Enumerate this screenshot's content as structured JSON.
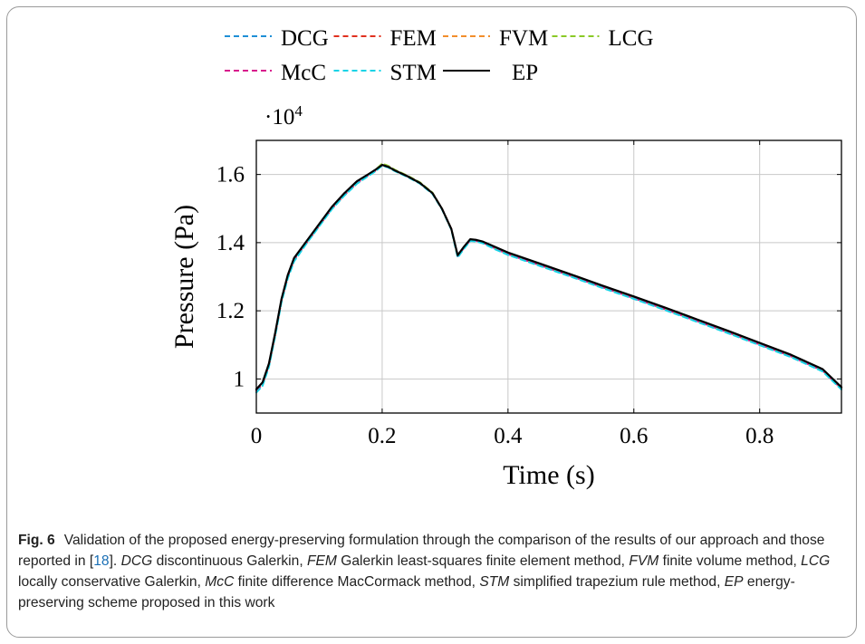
{
  "chart_data": {
    "type": "line",
    "xlabel": "Time (s)",
    "ylabel": "Pressure (Pa)",
    "y_multiplier": "·10",
    "y_multiplier_exponent": "4",
    "xlim": [
      0,
      0.93
    ],
    "ylim": [
      0.9,
      1.7
    ],
    "xticks": [
      0,
      0.2,
      0.4,
      0.6,
      0.8
    ],
    "xtick_labels": [
      "0",
      "0.2",
      "0.4",
      "0.6",
      "0.8"
    ],
    "yticks": [
      1.0,
      1.2,
      1.4,
      1.6
    ],
    "ytick_labels": [
      "1",
      "1.2",
      "1.4",
      "1.6"
    ],
    "grid": true,
    "legend_position": "top",
    "x": [
      0,
      0.01,
      0.02,
      0.03,
      0.04,
      0.05,
      0.06,
      0.08,
      0.1,
      0.12,
      0.14,
      0.16,
      0.18,
      0.19,
      0.2,
      0.21,
      0.22,
      0.24,
      0.26,
      0.28,
      0.295,
      0.31,
      0.32,
      0.33,
      0.34,
      0.35,
      0.36,
      0.38,
      0.4,
      0.45,
      0.5,
      0.55,
      0.6,
      0.65,
      0.7,
      0.75,
      0.8,
      0.85,
      0.9,
      0.93
    ],
    "series": [
      {
        "name": "DCG",
        "color": "#1f8fd6",
        "dash": "6,4",
        "values": [
          0.965,
          0.985,
          1.04,
          1.13,
          1.23,
          1.3,
          1.35,
          1.4,
          1.45,
          1.5,
          1.54,
          1.575,
          1.6,
          1.612,
          1.628,
          1.622,
          1.612,
          1.595,
          1.575,
          1.545,
          1.5,
          1.44,
          1.36,
          1.385,
          1.407,
          1.405,
          1.4,
          1.383,
          1.367,
          1.335,
          1.302,
          1.27,
          1.237,
          1.205,
          1.171,
          1.137,
          1.102,
          1.067,
          1.025,
          0.972
        ]
      },
      {
        "name": "FEM",
        "color": "#e0301e",
        "dash": "6,4",
        "values": [
          0.965,
          0.985,
          1.04,
          1.13,
          1.23,
          1.3,
          1.35,
          1.4,
          1.45,
          1.5,
          1.54,
          1.575,
          1.6,
          1.612,
          1.63,
          1.623,
          1.612,
          1.595,
          1.575,
          1.545,
          1.5,
          1.44,
          1.358,
          1.384,
          1.407,
          1.405,
          1.4,
          1.383,
          1.367,
          1.335,
          1.303,
          1.271,
          1.238,
          1.206,
          1.172,
          1.138,
          1.103,
          1.068,
          1.026,
          0.973
        ]
      },
      {
        "name": "FVM",
        "color": "#f28e2b",
        "dash": "6,4",
        "values": [
          0.965,
          0.985,
          1.04,
          1.13,
          1.23,
          1.3,
          1.35,
          1.4,
          1.45,
          1.5,
          1.54,
          1.575,
          1.6,
          1.612,
          1.629,
          1.623,
          1.612,
          1.595,
          1.575,
          1.545,
          1.5,
          1.44,
          1.359,
          1.385,
          1.407,
          1.405,
          1.4,
          1.383,
          1.367,
          1.335,
          1.303,
          1.27,
          1.238,
          1.205,
          1.171,
          1.137,
          1.102,
          1.067,
          1.025,
          0.972
        ]
      },
      {
        "name": "LCG",
        "color": "#8ac926",
        "dash": "6,4",
        "values": [
          0.965,
          0.985,
          1.04,
          1.13,
          1.23,
          1.3,
          1.35,
          1.4,
          1.45,
          1.5,
          1.54,
          1.577,
          1.602,
          1.615,
          1.632,
          1.625,
          1.614,
          1.597,
          1.577,
          1.547,
          1.5,
          1.44,
          1.36,
          1.386,
          1.408,
          1.406,
          1.401,
          1.384,
          1.368,
          1.336,
          1.304,
          1.271,
          1.238,
          1.206,
          1.172,
          1.138,
          1.103,
          1.068,
          1.026,
          0.973
        ]
      },
      {
        "name": "McC",
        "color": "#d81b8c",
        "dash": "6,4",
        "values": [
          0.965,
          0.985,
          1.04,
          1.13,
          1.23,
          1.3,
          1.35,
          1.4,
          1.45,
          1.5,
          1.54,
          1.575,
          1.6,
          1.612,
          1.628,
          1.622,
          1.612,
          1.595,
          1.575,
          1.545,
          1.5,
          1.44,
          1.36,
          1.385,
          1.407,
          1.405,
          1.4,
          1.383,
          1.366,
          1.334,
          1.302,
          1.269,
          1.237,
          1.204,
          1.17,
          1.136,
          1.101,
          1.066,
          1.024,
          0.971
        ]
      },
      {
        "name": "STM",
        "color": "#17d3e6",
        "dash": "6,4",
        "values": [
          0.96,
          0.98,
          1.035,
          1.125,
          1.225,
          1.295,
          1.345,
          1.398,
          1.448,
          1.498,
          1.538,
          1.573,
          1.598,
          1.61,
          1.626,
          1.62,
          1.61,
          1.593,
          1.573,
          1.543,
          1.498,
          1.438,
          1.356,
          1.382,
          1.405,
          1.403,
          1.398,
          1.38,
          1.364,
          1.332,
          1.3,
          1.267,
          1.235,
          1.202,
          1.168,
          1.134,
          1.099,
          1.064,
          1.022,
          0.969
        ]
      },
      {
        "name": "EP",
        "color": "#000000",
        "dash": "",
        "values": [
          0.97,
          0.99,
          1.045,
          1.135,
          1.235,
          1.305,
          1.355,
          1.405,
          1.455,
          1.505,
          1.545,
          1.58,
          1.603,
          1.615,
          1.628,
          1.622,
          1.612,
          1.595,
          1.575,
          1.545,
          1.5,
          1.44,
          1.363,
          1.388,
          1.41,
          1.408,
          1.403,
          1.387,
          1.371,
          1.339,
          1.307,
          1.274,
          1.242,
          1.209,
          1.175,
          1.141,
          1.106,
          1.071,
          1.029,
          0.976
        ]
      }
    ]
  },
  "caption": {
    "label": "Fig. 6",
    "text_1": "Validation of the proposed energy-preserving formulation through the comparison of the results of our approach and those reported in [",
    "ref": "18",
    "text_2": "]. ",
    "dcg_abbr": "DCG",
    "dcg_def": " discontinuous Galerkin, ",
    "fem_abbr": "FEM",
    "fem_def": " Galerkin least-squares finite element method, ",
    "fvm_abbr": "FVM",
    "fvm_def": " finite volume method, ",
    "lcg_abbr": "LCG",
    "lcg_def": " locally conservative Galerkin, ",
    "mcc_abbr": "McC",
    "mcc_def": " finite difference MacCormack method, ",
    "stm_abbr": "STM",
    "stm_def": " simplified trapezium rule method, ",
    "ep_abbr": "EP",
    "ep_def": " energy-preserving scheme proposed in this work"
  }
}
